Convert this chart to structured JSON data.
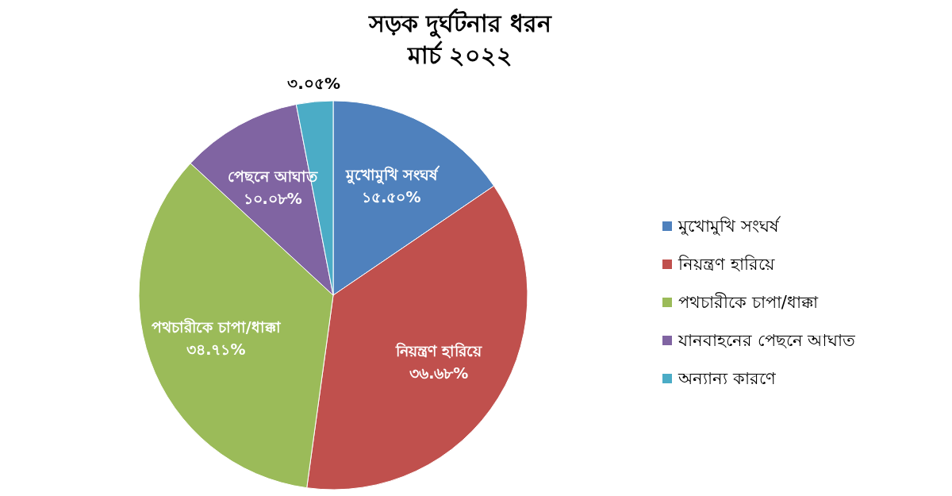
{
  "chart_data": {
    "type": "pie",
    "title": "সড়ক দুর্ঘটনার ধরন",
    "subtitle": "মার্চ ২০২২",
    "categories": [
      "মুখোমুখি সংঘর্ষ",
      "নিয়ন্ত্রণ হারিয়ে",
      "পথচারীকে চাপা/ধাক্কা",
      "যানবাহনের পেছনে আঘাত",
      "অন্যান্য কারণে"
    ],
    "values": [
      15.5,
      36.68,
      34.71,
      10.08,
      3.05
    ],
    "colors": [
      "#4f81bd",
      "#c0504d",
      "#9bbb59",
      "#8064a2",
      "#4bacc6"
    ],
    "value_labels": [
      "১৫.৫০%",
      "৩৬.৬৮%",
      "৩৪.৭১%",
      "১০.০৮%",
      "৩.০৫%"
    ],
    "annotations": [
      {
        "text": "মুখোমুখি সংঘর্ষ",
        "x": "মুখোমুখি সংঘর্ষ"
      },
      {
        "text": "নিয়ন্ত্রণ হারিয়ে",
        "x": "নিয়ন্ত্রণ হারিয়ে"
      },
      {
        "text": "পথচারীকে চাপা/ধাক্কা",
        "x": "পথচারীকে চাপা/ধাক্কা"
      },
      {
        "text": "পেছনে আঘাত",
        "x": "যানবাহনের পেছনে আঘাত"
      }
    ],
    "legend": "right"
  }
}
